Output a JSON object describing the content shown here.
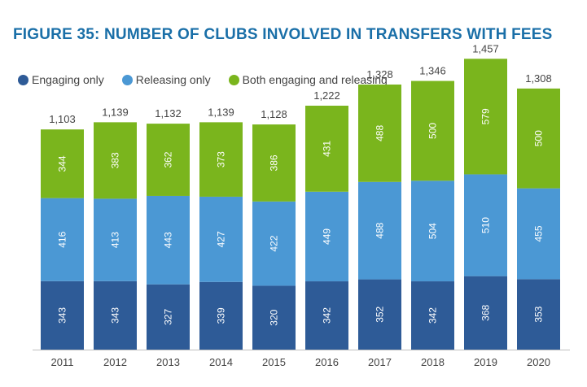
{
  "title": "FIGURE 35: NUMBER OF CLUBS INVOLVED IN TRANSFERS WITH FEES",
  "chart_data": {
    "type": "bar",
    "stacked": true,
    "title": "FIGURE 35: NUMBER OF CLUBS INVOLVED IN TRANSFERS WITH FEES",
    "xlabel": "",
    "ylabel": "",
    "legend_position": "top-left",
    "grid": false,
    "categories": [
      "2011",
      "2012",
      "2013",
      "2014",
      "2015",
      "2016",
      "2017",
      "2018",
      "2019",
      "2020"
    ],
    "series": [
      {
        "name": "Engaging only",
        "color": "#2e5b97",
        "values": [
          343,
          343,
          327,
          339,
          320,
          342,
          352,
          342,
          368,
          353
        ]
      },
      {
        "name": "Releasing only",
        "color": "#4b98d4",
        "values": [
          416,
          413,
          443,
          427,
          422,
          449,
          488,
          504,
          510,
          455
        ]
      },
      {
        "name": "Both engaging and releasing",
        "color": "#7ab51d",
        "values": [
          344,
          383,
          362,
          373,
          386,
          431,
          488,
          500,
          579,
          500
        ]
      }
    ],
    "totals": [
      "1,103",
      "1,139",
      "1,132",
      "1,139",
      "1,128",
      "1,222",
      "1,328",
      "1,346",
      "1,457",
      "1,308"
    ]
  }
}
